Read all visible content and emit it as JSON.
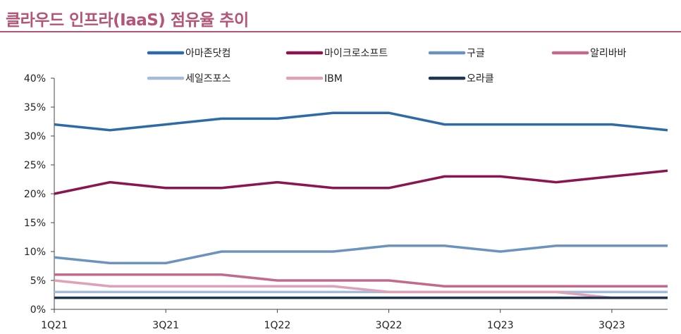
{
  "title": "클라우드 인프라(IaaS) 점유율 추이",
  "chart_data": {
    "type": "line",
    "title": "클라우드 인프라(IaaS) 점유율 추이",
    "xlabel": "",
    "ylabel": "",
    "ylim": [
      0,
      40
    ],
    "y_ticks": [
      "0%",
      "5%",
      "10%",
      "15%",
      "20%",
      "25%",
      "30%",
      "35%",
      "40%"
    ],
    "categories": [
      "1Q21",
      "2Q21",
      "3Q21",
      "4Q21",
      "1Q22",
      "2Q22",
      "3Q22",
      "4Q22",
      "1Q23",
      "2Q23",
      "3Q23",
      "4Q23"
    ],
    "x_tick_labels": [
      "1Q21",
      "",
      "3Q21",
      "",
      "1Q22",
      "",
      "3Q22",
      "",
      "1Q23",
      "",
      "3Q23",
      ""
    ],
    "grid": false,
    "legend_position": "top",
    "series": [
      {
        "name": "아마존닷컴",
        "color": "#2e6aa6",
        "values": [
          32,
          31,
          32,
          33,
          33,
          34,
          34,
          32,
          32,
          32,
          32,
          31
        ]
      },
      {
        "name": "마이크로소프트",
        "color": "#8a1550",
        "values": [
          20,
          22,
          21,
          21,
          22,
          21,
          21,
          23,
          23,
          22,
          23,
          24
        ]
      },
      {
        "name": "구글",
        "color": "#6b93be",
        "values": [
          9,
          8,
          8,
          10,
          10,
          10,
          11,
          11,
          10,
          11,
          11,
          11
        ]
      },
      {
        "name": "알리바바",
        "color": "#c26a8e",
        "values": [
          6,
          6,
          6,
          6,
          5,
          5,
          5,
          4,
          4,
          4,
          4,
          4
        ]
      },
      {
        "name": "세일즈포스",
        "color": "#a3bcd8",
        "values": [
          3,
          3,
          3,
          3,
          3,
          3,
          3,
          3,
          3,
          3,
          3,
          3
        ]
      },
      {
        "name": "IBM",
        "color": "#dda2b8",
        "values": [
          5,
          4,
          4,
          4,
          4,
          4,
          3,
          3,
          3,
          3,
          2,
          2
        ]
      },
      {
        "name": "오라클",
        "color": "#1f3550",
        "values": [
          2,
          2,
          2,
          2,
          2,
          2,
          2,
          2,
          2,
          2,
          2,
          2
        ]
      }
    ]
  }
}
